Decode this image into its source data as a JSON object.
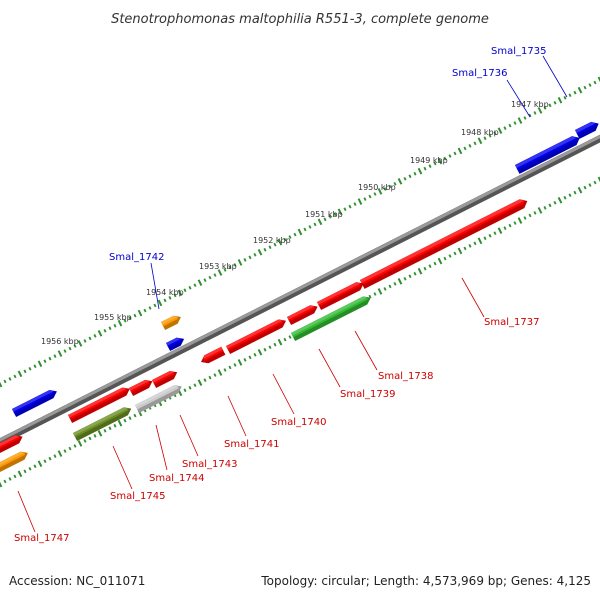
{
  "title": "Stenotrophomonas maltophilia R551-3, complete genome",
  "footer": {
    "accession": "Accession: NC_011071",
    "summary": "Topology: circular; Length: 4,573,969 bp; Genes: 4,125"
  },
  "colors": {
    "backbone": "#808080",
    "tick": "#2f8f2f",
    "red": "#ff0000",
    "blue": "#0000ee",
    "orange": "#ff9900",
    "green": "#33bb33",
    "olive": "#6b8e23",
    "gray": "#cccccc",
    "label_red": "#cc0000",
    "label_blue": "#0000cc"
  },
  "scale_labels": [
    "1947 kbp",
    "1948 kbp",
    "1949 kbp",
    "1950 kbp",
    "1951 kbp",
    "1952 kbp",
    "1953 kbp",
    "1954 kbp",
    "1955 kbp",
    "1956 kbp"
  ],
  "genes_labeled": [
    {
      "name": "Smal_1735",
      "color": "blue"
    },
    {
      "name": "Smal_1736",
      "color": "blue"
    },
    {
      "name": "Smal_1737",
      "color": "red"
    },
    {
      "name": "Smal_1738",
      "color": "red"
    },
    {
      "name": "Smal_1739",
      "color": "red"
    },
    {
      "name": "Smal_1740",
      "color": "red"
    },
    {
      "name": "Smal_1741",
      "color": "red"
    },
    {
      "name": "Smal_1742",
      "color": "blue"
    },
    {
      "name": "Smal_1743",
      "color": "red"
    },
    {
      "name": "Smal_1744",
      "color": "red"
    },
    {
      "name": "Smal_1745",
      "color": "red"
    },
    {
      "name": "Smal_1747",
      "color": "red"
    }
  ]
}
